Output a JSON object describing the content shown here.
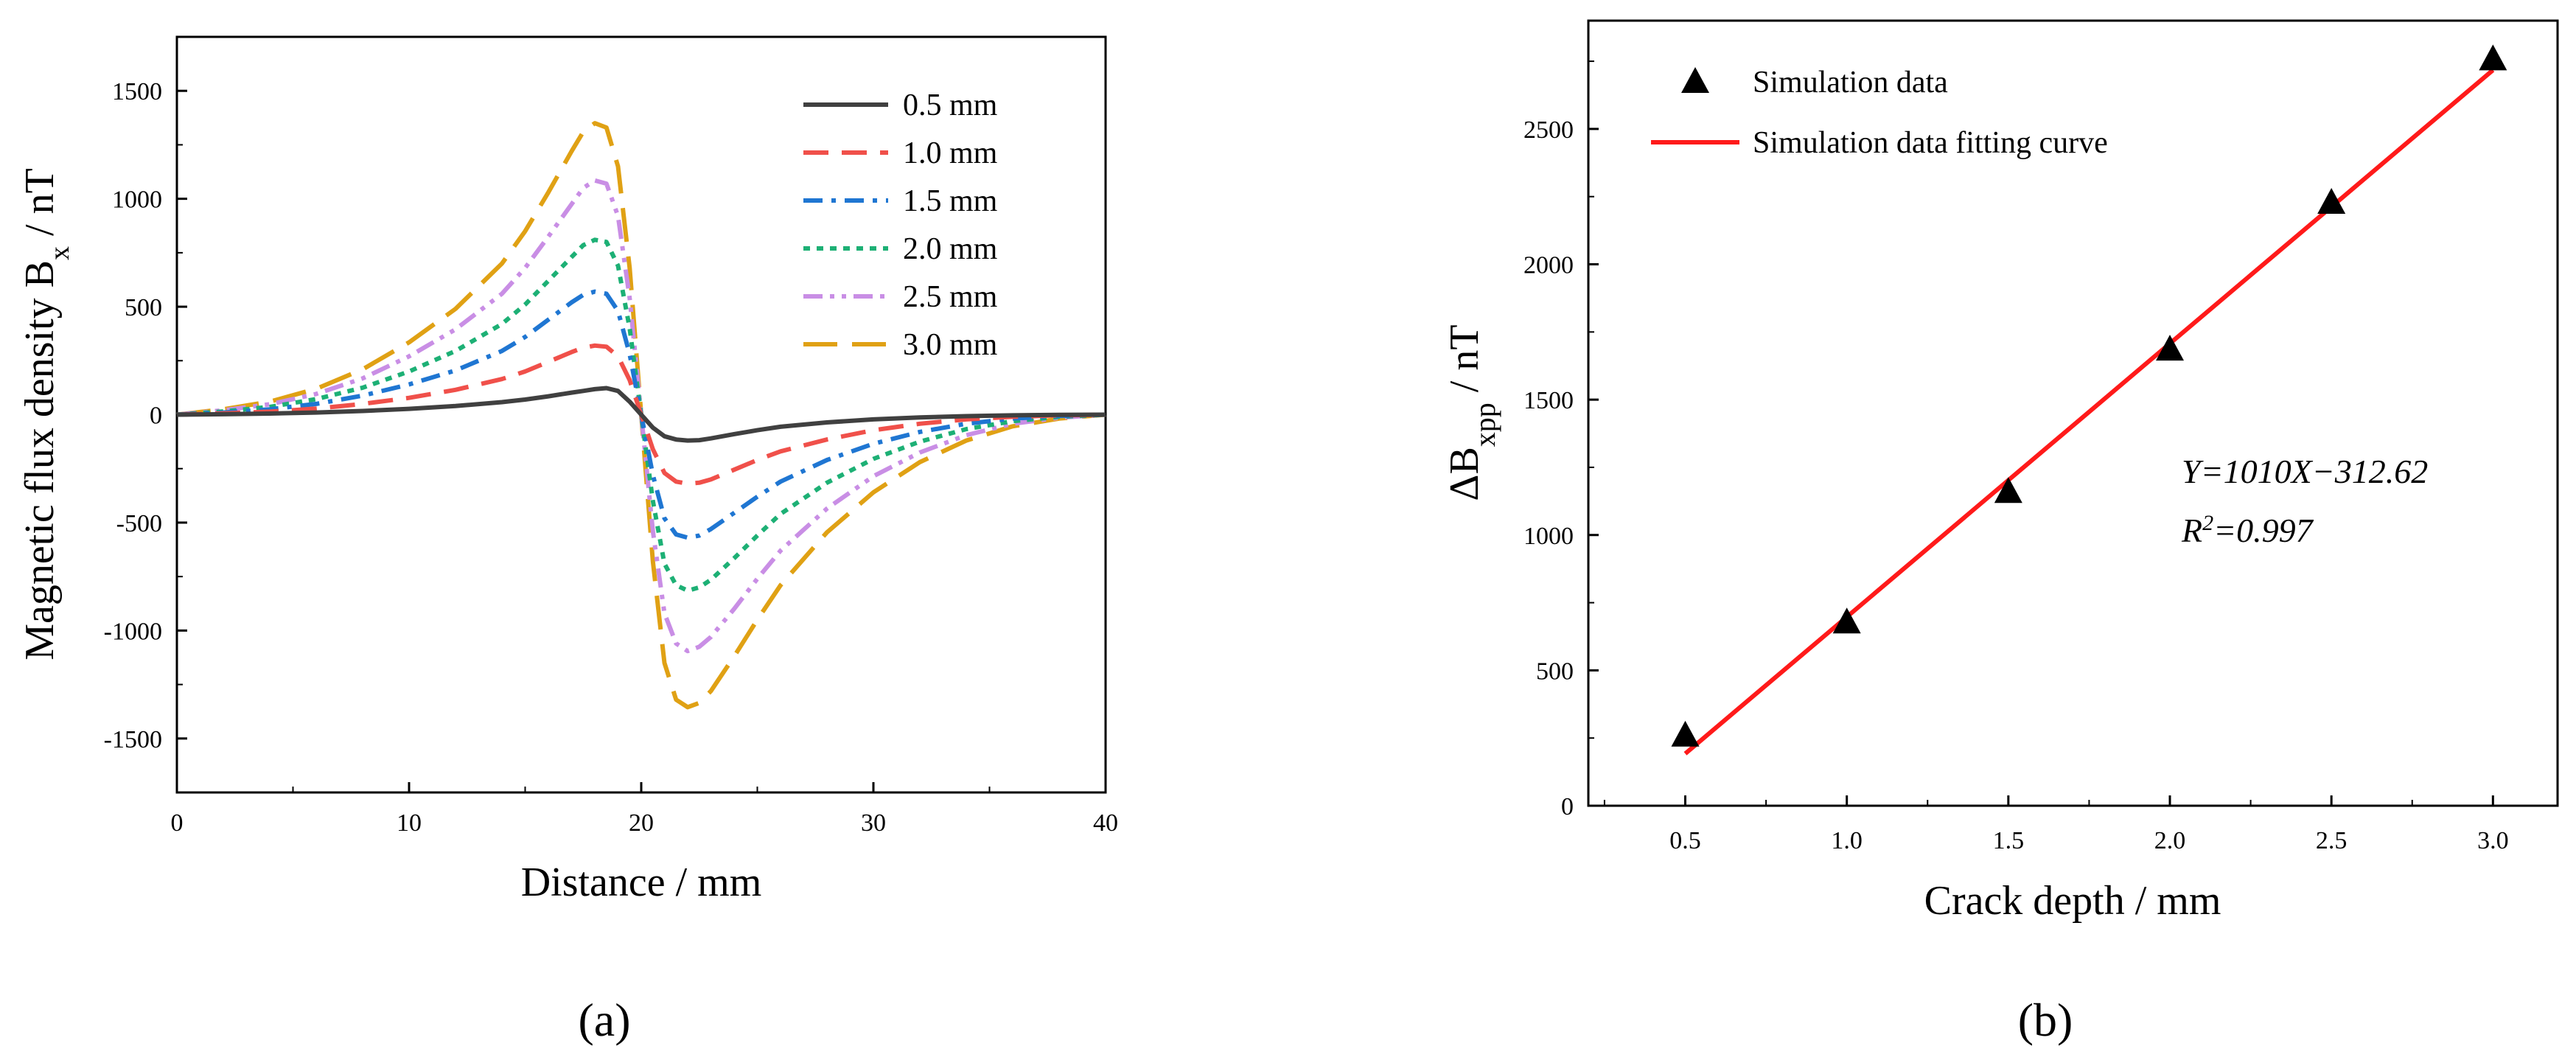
{
  "chart_data": [
    {
      "id": "a",
      "type": "line",
      "panel_label": "(a)",
      "xlabel": "Distance / mm",
      "ylabel": "Magnetic flux density B",
      "ylabel_subscript": "x",
      "ylabel_unit": "/  nT",
      "xlim": [
        0,
        40
      ],
      "ylim": [
        -1750,
        1750
      ],
      "xticks": [
        0,
        10,
        20,
        30,
        40
      ],
      "yticks": [
        -1500,
        -1000,
        -500,
        0,
        500,
        1000,
        1500
      ],
      "grid": false,
      "legend_position": "top-right",
      "x": [
        0,
        2,
        4,
        6,
        8,
        10,
        12,
        14,
        15,
        16,
        17,
        17.5,
        18,
        18.5,
        19,
        19.5,
        20,
        20.5,
        21,
        21.5,
        22,
        22.5,
        23,
        24,
        25,
        26,
        28,
        30,
        32,
        34,
        36,
        38,
        40
      ],
      "series": [
        {
          "name": "0.5 mm",
          "color": "#404040",
          "dash": "solid",
          "values": [
            0,
            2,
            5,
            10,
            17,
            27,
            40,
            58,
            70,
            85,
            102,
            110,
            118,
            123,
            110,
            60,
            0,
            -60,
            -100,
            -115,
            -120,
            -118,
            -110,
            -90,
            -72,
            -56,
            -36,
            -22,
            -13,
            -7,
            -3,
            -1,
            0
          ]
        },
        {
          "name": "1.0 mm",
          "color": "#f0504a",
          "dash": "dash",
          "values": [
            0,
            6,
            14,
            28,
            50,
            78,
            115,
            165,
            200,
            245,
            290,
            310,
            320,
            315,
            270,
            160,
            0,
            -160,
            -270,
            -310,
            -320,
            -315,
            -300,
            -255,
            -210,
            -170,
            -115,
            -72,
            -42,
            -22,
            -10,
            -3,
            0
          ]
        },
        {
          "name": "1.5 mm",
          "color": "#1f76d2",
          "dash": "dashdot",
          "values": [
            0,
            10,
            25,
            50,
            88,
            140,
            205,
            295,
            360,
            440,
            520,
            555,
            570,
            560,
            480,
            280,
            0,
            -280,
            -480,
            -555,
            -570,
            -560,
            -530,
            -455,
            -380,
            -310,
            -210,
            -135,
            -80,
            -42,
            -18,
            -6,
            0
          ]
        },
        {
          "name": "2.0 mm",
          "color": "#1db075",
          "dash": "dot",
          "values": [
            0,
            15,
            36,
            72,
            125,
            200,
            295,
            420,
            510,
            620,
            730,
            785,
            810,
            800,
            690,
            400,
            0,
            -400,
            -690,
            -790,
            -815,
            -800,
            -765,
            -665,
            -560,
            -460,
            -315,
            -205,
            -125,
            -67,
            -30,
            -10,
            0
          ]
        },
        {
          "name": "2.5 mm",
          "color": "#c98ee5",
          "dash": "dashdotdot",
          "values": [
            0,
            20,
            48,
            96,
            168,
            270,
            395,
            560,
            680,
            825,
            975,
            1050,
            1085,
            1070,
            920,
            540,
            0,
            -540,
            -920,
            -1060,
            -1095,
            -1075,
            -1030,
            -900,
            -760,
            -630,
            -435,
            -285,
            -175,
            -95,
            -42,
            -14,
            0
          ]
        },
        {
          "name": "3.0 mm",
          "color": "#e0a114",
          "dash": "longdash",
          "values": [
            0,
            25,
            60,
            120,
            210,
            335,
            490,
            700,
            850,
            1030,
            1220,
            1310,
            1350,
            1330,
            1150,
            680,
            0,
            -680,
            -1150,
            -1320,
            -1355,
            -1335,
            -1280,
            -1120,
            -950,
            -790,
            -545,
            -360,
            -220,
            -120,
            -54,
            -18,
            0
          ]
        }
      ]
    },
    {
      "id": "b",
      "type": "scatter",
      "panel_label": "(b)",
      "xlabel": "Crack depth / mm",
      "ylabel": "ΔB",
      "ylabel_subscript": "xpp",
      "ylabel_unit": " / nT",
      "xlim": [
        0.2,
        3.2
      ],
      "ylim": [
        0,
        2900
      ],
      "xticks": [
        0.5,
        1.0,
        1.5,
        2.0,
        2.5,
        3.0
      ],
      "xtick_labels": [
        "0.5",
        "1.0",
        "1.5",
        "2.0",
        "2.5",
        "3.0"
      ],
      "yticks": [
        0,
        500,
        1000,
        1500,
        2000,
        2500
      ],
      "grid": false,
      "legend_position": "top-left",
      "series": [
        {
          "name": "Simulation data",
          "marker": "triangle",
          "color": "#000000",
          "x": [
            0.5,
            1.0,
            1.5,
            2.0,
            2.5,
            3.0
          ],
          "values": [
            262,
            680,
            1162,
            1688,
            2230,
            2760
          ]
        },
        {
          "name": "Simulation data fitting curve",
          "color": "#ff1a1a",
          "dash": "solid",
          "x": [
            0.5,
            3.0
          ],
          "values": [
            192.38,
            2717.38
          ]
        }
      ],
      "annotation_equation": "Y=1010X−312.62",
      "annotation_r2_prefix": "R",
      "annotation_r2_sup": "2",
      "annotation_r2_value": "=0.997"
    }
  ]
}
